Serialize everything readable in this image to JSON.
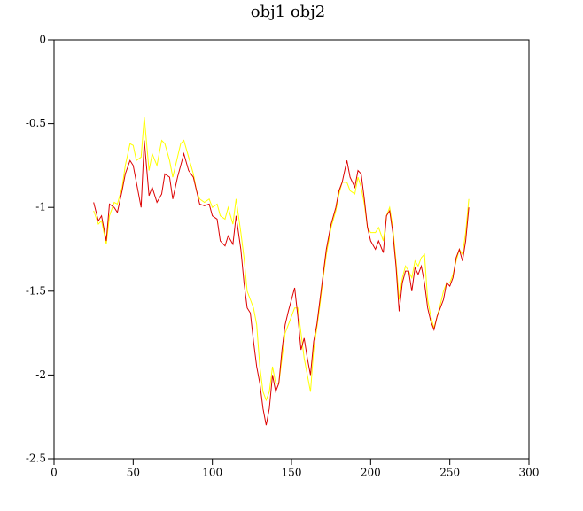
{
  "chart_data": {
    "type": "line",
    "title": "obj1 obj2",
    "x": [
      25,
      28,
      30,
      33,
      35,
      38,
      40,
      43,
      45,
      48,
      50,
      52,
      55,
      57,
      60,
      62,
      65,
      68,
      70,
      73,
      75,
      78,
      80,
      82,
      85,
      88,
      90,
      92,
      95,
      98,
      100,
      103,
      105,
      108,
      110,
      113,
      115,
      118,
      120,
      122,
      124,
      126,
      128,
      130,
      132,
      134,
      136,
      138,
      140,
      142,
      144,
      146,
      148,
      150,
      152,
      154,
      156,
      158,
      160,
      162,
      164,
      166,
      168,
      170,
      172,
      175,
      178,
      180,
      182,
      185,
      187,
      190,
      192,
      194,
      196,
      198,
      200,
      203,
      205,
      208,
      210,
      212,
      214,
      216,
      218,
      220,
      222,
      224,
      226,
      228,
      230,
      232,
      234,
      236,
      238,
      240,
      242,
      244,
      246,
      248,
      250,
      252,
      254,
      256,
      258,
      260,
      262
    ],
    "series": [
      {
        "name": "obj1",
        "color": "#dd0000",
        "values": [
          -0.97,
          -1.08,
          -1.05,
          -1.2,
          -0.98,
          -1.0,
          -1.03,
          -0.9,
          -0.8,
          -0.72,
          -0.75,
          -0.85,
          -1.0,
          -0.6,
          -0.93,
          -0.88,
          -0.97,
          -0.92,
          -0.8,
          -0.82,
          -0.95,
          -0.82,
          -0.75,
          -0.68,
          -0.78,
          -0.82,
          -0.9,
          -0.98,
          -0.99,
          -0.98,
          -1.05,
          -1.07,
          -1.2,
          -1.23,
          -1.17,
          -1.22,
          -1.05,
          -1.25,
          -1.45,
          -1.6,
          -1.63,
          -1.8,
          -1.95,
          -2.05,
          -2.2,
          -2.3,
          -2.2,
          -2.0,
          -2.1,
          -2.05,
          -1.85,
          -1.7,
          -1.62,
          -1.55,
          -1.48,
          -1.65,
          -1.85,
          -1.78,
          -1.9,
          -2.0,
          -1.8,
          -1.7,
          -1.55,
          -1.4,
          -1.25,
          -1.1,
          -1.0,
          -0.9,
          -0.85,
          -0.72,
          -0.82,
          -0.88,
          -0.78,
          -0.8,
          -0.95,
          -1.12,
          -1.2,
          -1.25,
          -1.2,
          -1.27,
          -1.05,
          -1.02,
          -1.15,
          -1.35,
          -1.62,
          -1.45,
          -1.38,
          -1.38,
          -1.5,
          -1.36,
          -1.4,
          -1.35,
          -1.45,
          -1.6,
          -1.68,
          -1.73,
          -1.65,
          -1.6,
          -1.55,
          -1.45,
          -1.47,
          -1.42,
          -1.3,
          -1.25,
          -1.32,
          -1.2,
          -1.0
        ]
      },
      {
        "name": "obj2",
        "color": "#ffff00",
        "values": [
          -1.02,
          -1.1,
          -1.08,
          -1.22,
          -1.05,
          -0.97,
          -0.98,
          -0.88,
          -0.75,
          -0.62,
          -0.63,
          -0.72,
          -0.7,
          -0.46,
          -0.78,
          -0.68,
          -0.75,
          -0.6,
          -0.62,
          -0.72,
          -0.82,
          -0.7,
          -0.62,
          -0.6,
          -0.7,
          -0.8,
          -0.9,
          -0.95,
          -0.97,
          -0.95,
          -1.0,
          -0.98,
          -1.05,
          -1.07,
          -1.0,
          -1.1,
          -0.95,
          -1.15,
          -1.3,
          -1.5,
          -1.55,
          -1.6,
          -1.7,
          -1.95,
          -2.1,
          -2.15,
          -2.1,
          -1.95,
          -2.05,
          -2.05,
          -1.9,
          -1.75,
          -1.7,
          -1.65,
          -1.6,
          -1.6,
          -1.75,
          -1.9,
          -2.0,
          -2.1,
          -1.85,
          -1.72,
          -1.58,
          -1.42,
          -1.28,
          -1.12,
          -1.02,
          -0.92,
          -0.85,
          -0.85,
          -0.9,
          -0.92,
          -0.82,
          -0.88,
          -0.98,
          -1.12,
          -1.15,
          -1.15,
          -1.12,
          -1.2,
          -1.05,
          -1.0,
          -1.12,
          -1.32,
          -1.55,
          -1.42,
          -1.35,
          -1.38,
          -1.42,
          -1.32,
          -1.35,
          -1.3,
          -1.28,
          -1.55,
          -1.65,
          -1.72,
          -1.65,
          -1.58,
          -1.5,
          -1.45,
          -1.45,
          -1.4,
          -1.32,
          -1.25,
          -1.28,
          -1.15,
          -0.95
        ]
      }
    ],
    "xlim": [
      0,
      300
    ],
    "ylim": [
      -2.5,
      0
    ],
    "xticks": [
      0,
      50,
      100,
      150,
      200,
      250,
      300
    ],
    "yticks": [
      0,
      -0.5,
      -1,
      -1.5,
      -2,
      -2.5
    ]
  }
}
